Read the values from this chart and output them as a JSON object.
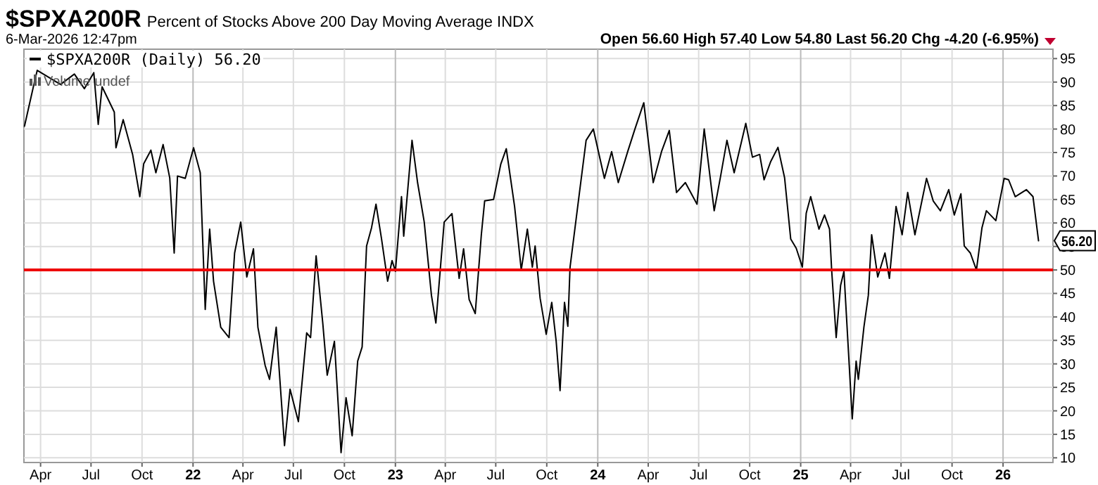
{
  "chart_data": {
    "type": "line",
    "title": "$SPXA200R",
    "subtitle": "Percent of Stocks Above 200 Day Moving Average INDX",
    "annotations": [
      "6-Mar-2026 12:47pm",
      "Open 56.60  High 57.40  Low 54.80  Last 56.20  Chg -4.20 (-6.95%)",
      "Volume undef",
      {
        "text": "56.20",
        "x": "2026-03-06",
        "y": 56.2
      }
    ],
    "xlim": [
      "2021-03-02",
      "2026-04-01"
    ],
    "xticks": [
      {
        "value": "2021-04-01",
        "label": "Apr"
      },
      {
        "value": "2021-07-01",
        "label": "Jul"
      },
      {
        "value": "2021-10-01",
        "label": "Oct"
      },
      {
        "value": "2022-01-01",
        "label": "22"
      },
      {
        "value": "2022-04-01",
        "label": "Apr"
      },
      {
        "value": "2022-07-01",
        "label": "Jul"
      },
      {
        "value": "2022-10-01",
        "label": "Oct"
      },
      {
        "value": "2023-01-01",
        "label": "23"
      },
      {
        "value": "2023-04-01",
        "label": "Apr"
      },
      {
        "value": "2023-07-01",
        "label": "Jul"
      },
      {
        "value": "2023-10-01",
        "label": "Oct"
      },
      {
        "value": "2024-01-01",
        "label": "24"
      },
      {
        "value": "2024-04-01",
        "label": "Apr"
      },
      {
        "value": "2024-07-01",
        "label": "Jul"
      },
      {
        "value": "2024-10-01",
        "label": "Oct"
      },
      {
        "value": "2025-01-01",
        "label": "25"
      },
      {
        "value": "2025-04-01",
        "label": "Apr"
      },
      {
        "value": "2025-07-01",
        "label": "Jul"
      },
      {
        "value": "2025-10-01",
        "label": "Oct"
      },
      {
        "value": "2026-01-01",
        "label": "26"
      }
    ],
    "ylim": [
      9,
      97
    ],
    "yticks": [
      10,
      15,
      20,
      25,
      30,
      35,
      40,
      45,
      50,
      55,
      60,
      65,
      70,
      75,
      80,
      85,
      90,
      95
    ],
    "grid": true,
    "legend": "top left",
    "line_style": "solid",
    "ref_lines": [
      {
        "axis": "y",
        "value": 50,
        "color": "#ee0000"
      }
    ],
    "series": [
      {
        "name": "$SPXA200R (Daily) 56.20",
        "color": "#000000",
        "x": [
          "2021-03-03",
          "2021-03-19",
          "2021-03-26",
          "2021-05-07",
          "2021-06-01",
          "2021-06-19",
          "2021-07-06",
          "2021-07-14",
          "2021-07-21",
          "2021-08-12",
          "2021-08-15",
          "2021-08-28",
          "2021-09-14",
          "2021-09-27",
          "2021-10-04",
          "2021-10-17",
          "2021-10-26",
          "2021-11-08",
          "2021-11-20",
          "2021-11-28",
          "2021-12-04",
          "2021-12-18",
          "2022-01-02",
          "2022-01-14",
          "2022-01-23",
          "2022-01-31",
          "2022-02-07",
          "2022-02-20",
          "2022-03-07",
          "2022-03-17",
          "2022-03-28",
          "2022-04-08",
          "2022-04-20",
          "2022-04-28",
          "2022-05-11",
          "2022-05-19",
          "2022-05-31",
          "2022-06-15",
          "2022-06-25",
          "2022-07-10",
          "2022-07-25",
          "2022-08-01",
          "2022-08-11",
          "2022-08-23",
          "2022-08-31",
          "2022-09-13",
          "2022-09-25",
          "2022-10-04",
          "2022-10-15",
          "2022-10-25",
          "2022-11-02",
          "2022-11-10",
          "2022-11-19",
          "2022-11-27",
          "2022-12-07",
          "2022-12-18",
          "2022-12-26",
          "2023-01-01",
          "2023-01-12",
          "2023-01-16",
          "2023-01-31",
          "2023-02-10",
          "2023-02-22",
          "2023-03-07",
          "2023-03-15",
          "2023-03-30",
          "2023-04-13",
          "2023-04-26",
          "2023-05-04",
          "2023-05-14",
          "2023-05-25",
          "2023-06-05",
          "2023-06-11",
          "2023-06-27",
          "2023-07-10",
          "2023-07-20",
          "2023-08-04",
          "2023-08-16",
          "2023-08-27",
          "2023-09-05",
          "2023-09-10",
          "2023-09-19",
          "2023-09-30",
          "2023-10-10",
          "2023-10-18",
          "2023-10-25",
          "2023-11-02",
          "2023-11-08",
          "2023-11-12",
          "2023-11-29",
          "2023-12-11",
          "2023-12-24",
          "2024-01-13",
          "2024-01-26",
          "2024-02-07",
          "2024-02-24",
          "2024-03-08",
          "2024-03-24",
          "2024-04-10",
          "2024-04-25",
          "2024-05-09",
          "2024-05-22",
          "2024-06-07",
          "2024-06-28",
          "2024-07-11",
          "2024-07-29",
          "2024-08-09",
          "2024-08-21",
          "2024-09-03",
          "2024-09-24",
          "2024-10-06",
          "2024-10-19",
          "2024-10-27",
          "2024-11-08",
          "2024-11-21",
          "2024-12-03",
          "2024-12-14",
          "2024-12-24",
          "2025-01-04",
          "2025-01-11",
          "2025-01-19",
          "2025-02-03",
          "2025-02-13",
          "2025-02-22",
          "2025-02-26",
          "2025-03-06",
          "2025-03-14",
          "2025-03-20",
          "2025-04-04",
          "2025-04-11",
          "2025-04-15",
          "2025-04-25",
          "2025-05-03",
          "2025-05-09",
          "2025-05-20",
          "2025-06-02",
          "2025-06-10",
          "2025-06-22",
          "2025-07-03",
          "2025-07-13",
          "2025-07-26",
          "2025-08-16",
          "2025-08-28",
          "2025-09-10",
          "2025-09-25",
          "2025-10-05",
          "2025-10-17",
          "2025-10-23",
          "2025-11-03",
          "2025-11-14",
          "2025-11-24",
          "2025-12-02",
          "2025-12-19",
          "2026-01-03",
          "2026-01-11",
          "2026-01-23",
          "2026-02-12",
          "2026-02-24",
          "2026-03-06"
        ],
        "values": [
          80.6,
          89,
          92.5,
          89.5,
          91.7,
          88.6,
          92,
          81,
          89,
          83.6,
          76,
          82,
          74.6,
          65.6,
          72.6,
          75.5,
          70.7,
          76.7,
          69.6,
          53.6,
          70,
          69.5,
          76,
          70.7,
          41.6,
          58.7,
          47.6,
          37.8,
          35.6,
          53.6,
          60.2,
          48.5,
          54.5,
          37.8,
          29.7,
          26.7,
          37.8,
          12.6,
          24.6,
          17.7,
          36.6,
          35.6,
          53,
          38.7,
          27.6,
          34.8,
          11.1,
          22.8,
          14.7,
          30.6,
          33.6,
          55.1,
          59,
          64,
          56.6,
          47.6,
          52,
          49.7,
          65.6,
          57.2,
          77.6,
          68.6,
          60.2,
          44.6,
          38.7,
          60.2,
          62,
          48.2,
          54.5,
          43.7,
          40.7,
          57.5,
          64.7,
          65,
          72.5,
          75.8,
          63.5,
          50,
          58.7,
          50.6,
          55.1,
          44,
          36.3,
          43.1,
          34.8,
          24.3,
          43.1,
          38,
          50.6,
          66.5,
          77.6,
          80,
          69.5,
          75.2,
          68.6,
          75.2,
          80,
          85.6,
          68.6,
          75.2,
          79.7,
          66.5,
          68.6,
          64,
          80,
          62.6,
          69.6,
          77.6,
          70.7,
          81.2,
          74,
          74.6,
          69.2,
          73.1,
          76.1,
          69.6,
          56.6,
          54.6,
          50.6,
          62.1,
          65.6,
          58.7,
          61.7,
          58.7,
          49.7,
          35.6,
          46.7,
          49.7,
          18.3,
          30.6,
          26.7,
          37.8,
          44.6,
          57.5,
          48.5,
          53.6,
          48.2,
          63.5,
          57.5,
          66.5,
          57.5,
          69.5,
          64.7,
          62.6,
          67.1,
          61.7,
          66.2,
          55.1,
          53.6,
          50,
          59,
          62.6,
          60.5,
          69.5,
          69.2,
          65.6,
          67.1,
          65.6,
          56.2
        ]
      }
    ]
  }
}
